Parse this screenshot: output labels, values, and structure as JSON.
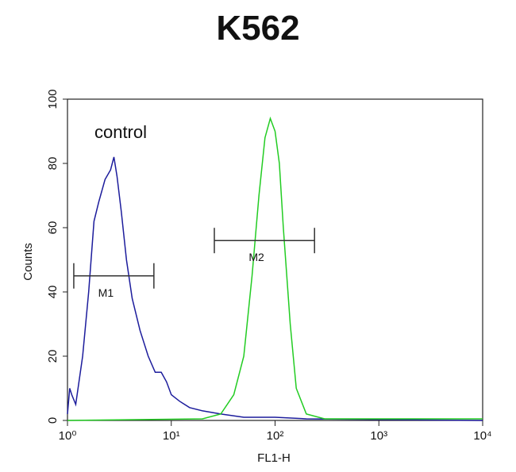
{
  "chart_data": {
    "type": "line",
    "title": "K562",
    "x_label": "FL1-H",
    "y_label": "Counts",
    "xscale": "log",
    "xlim": [
      1,
      10000
    ],
    "ylim": [
      0,
      100
    ],
    "xticks": [
      {
        "value": 1,
        "label": "10⁰"
      },
      {
        "value": 10,
        "label": "10¹"
      },
      {
        "value": 100,
        "label": "10²"
      },
      {
        "value": 1000,
        "label": "10³"
      },
      {
        "value": 10000,
        "label": "10⁴"
      }
    ],
    "yticks": [
      0,
      20,
      40,
      60,
      80,
      100
    ],
    "series": [
      {
        "name": "control",
        "color": "#1c1c9c",
        "x": [
          1.0,
          1.05,
          1.1,
          1.2,
          1.4,
          1.6,
          1.8,
          2.0,
          2.3,
          2.6,
          2.8,
          3.0,
          3.3,
          3.7,
          4.2,
          5,
          6,
          7,
          8,
          9,
          10,
          12,
          15,
          20,
          30,
          50,
          100,
          200,
          10000
        ],
        "values": [
          2,
          10,
          8,
          5,
          20,
          40,
          62,
          68,
          75,
          78,
          82,
          76,
          65,
          50,
          38,
          28,
          20,
          15,
          15,
          12,
          8,
          6,
          4,
          3,
          2,
          1,
          1,
          0.5,
          0
        ]
      },
      {
        "color": "#22cc22",
        "x": [
          1,
          20,
          30,
          40,
          50,
          60,
          70,
          80,
          90,
          100,
          110,
          120,
          140,
          160,
          200,
          300,
          10000
        ],
        "values": [
          0,
          0.5,
          2,
          8,
          20,
          45,
          70,
          88,
          94,
          90,
          80,
          60,
          30,
          10,
          2,
          0.5,
          0.5
        ]
      }
    ],
    "markers": [
      {
        "label": "M1",
        "range": [
          1.15,
          6.8
        ],
        "y": 45
      },
      {
        "label": "M2",
        "range": [
          26,
          240
        ],
        "y": 56
      }
    ]
  }
}
